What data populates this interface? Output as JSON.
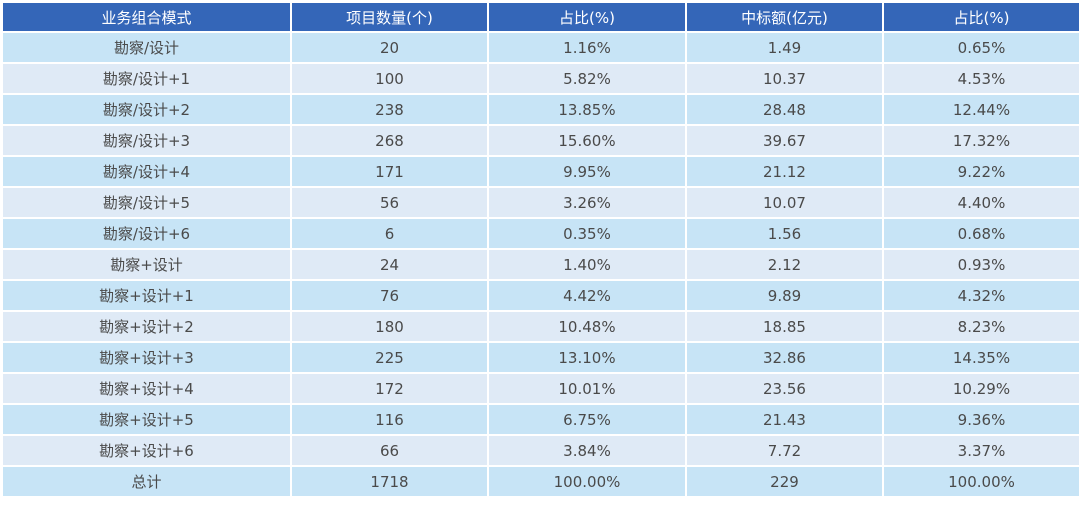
{
  "table": {
    "headers": [
      "业务组合模式",
      "项目数量(个)",
      "占比(%)",
      "中标额(亿元)",
      "占比(%)"
    ],
    "rows": [
      [
        "勘察/设计",
        "20",
        "1.16%",
        "1.49",
        "0.65%"
      ],
      [
        "勘察/设计+1",
        "100",
        "5.82%",
        "10.37",
        "4.53%"
      ],
      [
        "勘察/设计+2",
        "238",
        "13.85%",
        "28.48",
        "12.44%"
      ],
      [
        "勘察/设计+3",
        "268",
        "15.60%",
        "39.67",
        "17.32%"
      ],
      [
        "勘察/设计+4",
        "171",
        "9.95%",
        "21.12",
        "9.22%"
      ],
      [
        "勘察/设计+5",
        "56",
        "3.26%",
        "10.07",
        "4.40%"
      ],
      [
        "勘察/设计+6",
        "6",
        "0.35%",
        "1.56",
        "0.68%"
      ],
      [
        "勘察+设计",
        "24",
        "1.40%",
        "2.12",
        "0.93%"
      ],
      [
        "勘察+设计+1",
        "76",
        "4.42%",
        "9.89",
        "4.32%"
      ],
      [
        "勘察+设计+2",
        "180",
        "10.48%",
        "18.85",
        "8.23%"
      ],
      [
        "勘察+设计+3",
        "225",
        "13.10%",
        "32.86",
        "14.35%"
      ],
      [
        "勘察+设计+4",
        "172",
        "10.01%",
        "23.56",
        "10.29%"
      ],
      [
        "勘察+设计+5",
        "116",
        "6.75%",
        "21.43",
        "9.36%"
      ],
      [
        "勘察+设计+6",
        "66",
        "3.84%",
        "7.72",
        "3.37%"
      ],
      [
        "总计",
        "1718",
        "100.00%",
        "229",
        "100.00%"
      ]
    ]
  },
  "colors": {
    "header_bg": "#3466b8",
    "header_text": "#ffffff",
    "row_odd_bg": "#c7e4f6",
    "row_even_bg": "#dfeaf6",
    "cell_text": "#4a4a4a"
  }
}
